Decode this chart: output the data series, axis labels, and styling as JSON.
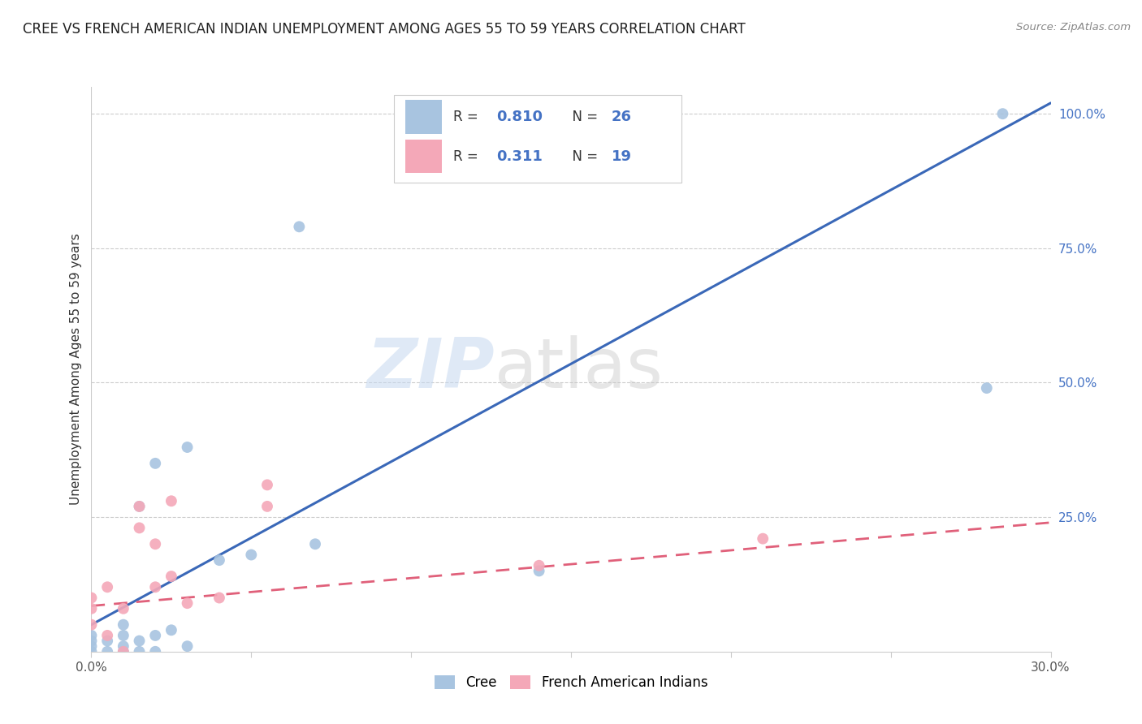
{
  "title": "CREE VS FRENCH AMERICAN INDIAN UNEMPLOYMENT AMONG AGES 55 TO 59 YEARS CORRELATION CHART",
  "source": "Source: ZipAtlas.com",
  "ylabel": "Unemployment Among Ages 55 to 59 years",
  "xmin": 0.0,
  "xmax": 0.3,
  "ymin": 0.0,
  "ymax": 1.05,
  "xticks": [
    0.0,
    0.05,
    0.1,
    0.15,
    0.2,
    0.25,
    0.3
  ],
  "yticks_right": [
    0.0,
    0.25,
    0.5,
    0.75,
    1.0
  ],
  "yticklabels_right": [
    "",
    "25.0%",
    "50.0%",
    "75.0%",
    "100.0%"
  ],
  "cree_color": "#a8c4e0",
  "french_color": "#f4a8b8",
  "cree_line_color": "#3a68b8",
  "french_line_color": "#e0607a",
  "cree_r": 0.81,
  "cree_n": 26,
  "french_r": 0.311,
  "french_n": 19,
  "cree_points_x": [
    0.0,
    0.0,
    0.0,
    0.0,
    0.005,
    0.005,
    0.01,
    0.01,
    0.01,
    0.01,
    0.015,
    0.015,
    0.015,
    0.02,
    0.02,
    0.02,
    0.025,
    0.03,
    0.03,
    0.04,
    0.05,
    0.065,
    0.07,
    0.14,
    0.28,
    0.285
  ],
  "cree_points_y": [
    0.0,
    0.01,
    0.02,
    0.03,
    0.0,
    0.02,
    0.0,
    0.01,
    0.03,
    0.05,
    0.0,
    0.02,
    0.27,
    0.0,
    0.03,
    0.35,
    0.04,
    0.01,
    0.38,
    0.17,
    0.18,
    0.79,
    0.2,
    0.15,
    0.49,
    1.0
  ],
  "french_points_x": [
    0.0,
    0.0,
    0.0,
    0.005,
    0.005,
    0.01,
    0.01,
    0.015,
    0.015,
    0.02,
    0.02,
    0.025,
    0.025,
    0.03,
    0.04,
    0.055,
    0.055,
    0.14,
    0.21
  ],
  "french_points_y": [
    0.05,
    0.08,
    0.1,
    0.03,
    0.12,
    0.0,
    0.08,
    0.23,
    0.27,
    0.12,
    0.2,
    0.14,
    0.28,
    0.09,
    0.1,
    0.27,
    0.31,
    0.16,
    0.21
  ],
  "watermark_zip": "ZIP",
  "watermark_atlas": "atlas",
  "legend_label_1": "Cree",
  "legend_label_2": "French American Indians",
  "marker_size": 100,
  "cree_line_x0": 0.0,
  "cree_line_y0": 0.05,
  "cree_line_x1": 0.3,
  "cree_line_y1": 1.02,
  "french_line_x0": 0.0,
  "french_line_y0": 0.085,
  "french_line_x1": 0.3,
  "french_line_y1": 0.24,
  "grid_color": "#cccccc",
  "axis_color": "#cccccc",
  "title_fontsize": 12,
  "label_fontsize": 11,
  "right_tick_color": "#4472c4"
}
